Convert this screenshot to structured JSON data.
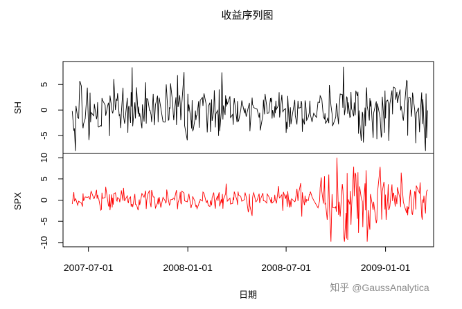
{
  "title": "收益序列图",
  "xlabel": "日期",
  "watermark": "知乎 @GaussAnalytica",
  "chart_data": {
    "type": "line",
    "x_range": [
      "2007-05-15",
      "2009-03-31"
    ],
    "x_ticks": [
      {
        "date": "2007-07-01",
        "label": "2007-07-01"
      },
      {
        "date": "2008-01-01",
        "label": "2008-01-01"
      },
      {
        "date": "2008-07-01",
        "label": "2008-07-01"
      },
      {
        "date": "2009-01-01",
        "label": "2009-01-01"
      }
    ],
    "panels": [
      {
        "name": "SH",
        "ylabel": "SH",
        "color": "#000000",
        "ylim": [
          -8.5,
          9.5
        ],
        "yticks": [
          -5,
          0,
          5
        ],
        "ytick_labels": [
          "-5",
          "0",
          "5"
        ]
      },
      {
        "name": "SPX",
        "ylabel": "SPX",
        "color": "#ff0000",
        "ylim": [
          -11,
          11
        ],
        "yticks": [
          -10,
          -5,
          0,
          5,
          10
        ],
        "ytick_labels": [
          "-10",
          "-5",
          "0",
          "5",
          "10"
        ]
      }
    ]
  }
}
